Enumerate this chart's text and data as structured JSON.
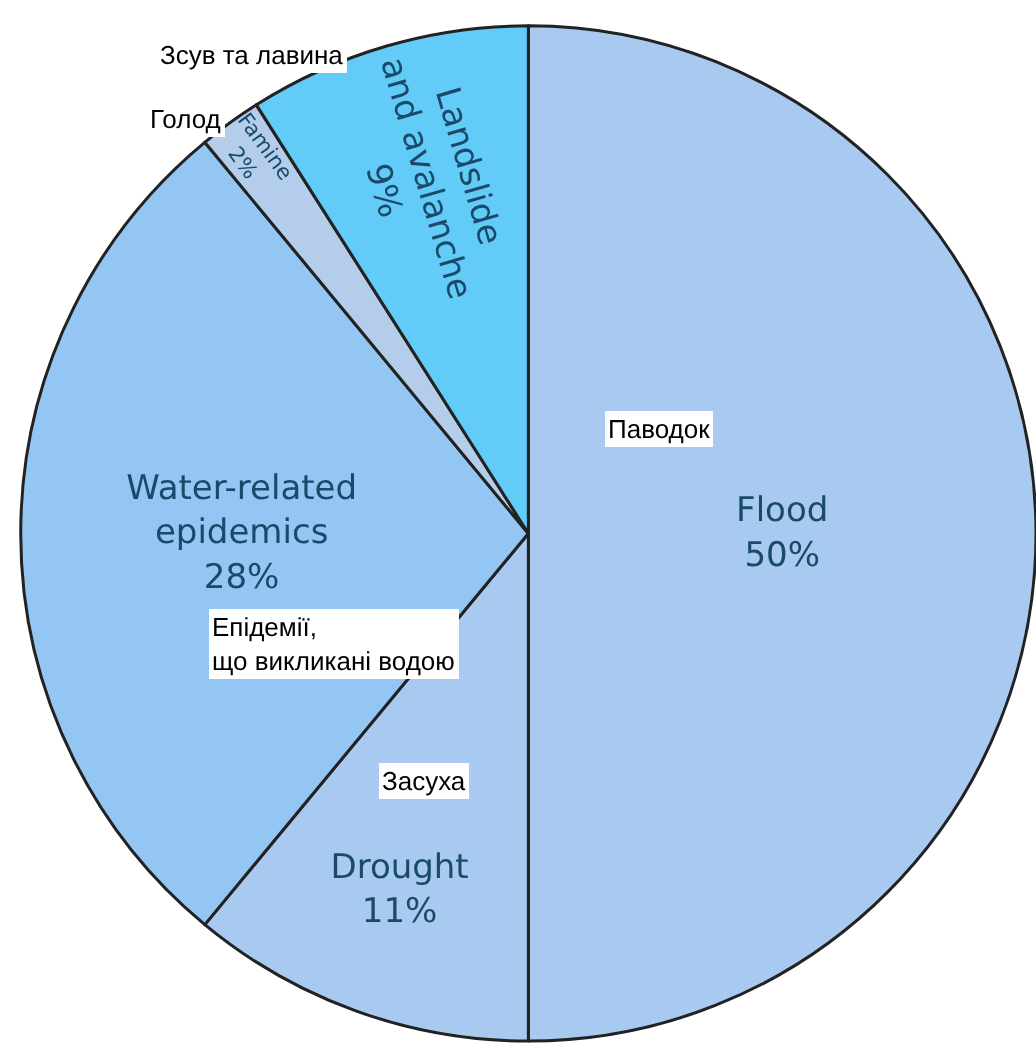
{
  "chart_data": {
    "type": "pie",
    "categories": [
      "Flood",
      "Drought",
      "Water-related epidemics",
      "Famine",
      "Landslide and avalanche"
    ],
    "values": [
      50,
      11,
      28,
      2,
      9
    ],
    "value_labels": [
      "50%",
      "11%",
      "28%",
      "2%",
      "9%"
    ],
    "colors": [
      "#a8caf0",
      "#a8caf0",
      "#94c6f4",
      "#b4cdeb",
      "#62cbf7"
    ],
    "annotations": [
      "Паводок",
      "Засуха",
      "Епідемії, що викликані водою",
      "Голод",
      "Зсув та лавина"
    ],
    "legend": false
  }
}
